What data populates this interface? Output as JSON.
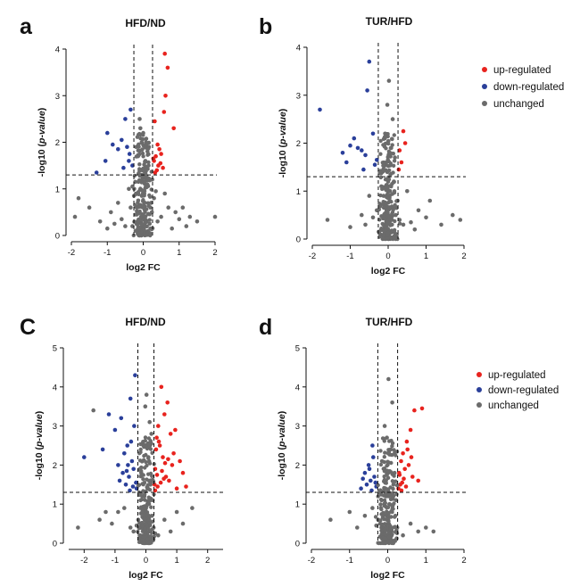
{
  "chart_data": [
    {
      "panel_letter": "a",
      "type": "scatter",
      "title": "HFD/ND",
      "xlabel": "log2 FC",
      "ylabel_prefix": "-log10 (",
      "ylabel_italic": "p-value",
      "ylabel_suffix": ")",
      "xlim": [
        -2,
        2
      ],
      "ylim": [
        0,
        4
      ],
      "xticks": [
        -2,
        -1,
        0,
        1,
        2
      ],
      "yticks": [
        0,
        1,
        2,
        3,
        4
      ],
      "fc_threshold": [
        -0.26,
        0.26
      ],
      "p_threshold": 1.3,
      "grid": false,
      "legend": false,
      "series": [
        {
          "color": "#e8231e",
          "x": [
            0.6,
            0.68,
            0.62,
            0.58,
            0.85,
            0.32,
            0.4,
            0.45,
            0.5,
            0.35,
            0.3,
            0.42,
            0.55,
            0.38,
            0.48,
            0.28,
            0.33
          ],
          "y": [
            3.9,
            3.6,
            3.0,
            2.65,
            2.3,
            2.45,
            1.95,
            1.85,
            1.75,
            1.7,
            1.6,
            1.5,
            1.45,
            1.4,
            1.55,
            1.65,
            1.35
          ]
        },
        {
          "color": "#2a3f9a",
          "x": [
            -0.35,
            -0.5,
            -1.0,
            -1.05,
            -1.3,
            -0.85,
            -0.6,
            -0.45,
            -0.4,
            -0.55,
            -0.3,
            -0.38,
            -0.7
          ],
          "y": [
            2.7,
            2.5,
            2.2,
            1.6,
            1.35,
            1.95,
            2.05,
            1.9,
            1.6,
            1.45,
            1.5,
            1.75,
            1.85
          ]
        },
        {
          "color": "#6b6b6b",
          "x": [
            -1.8,
            -1.9,
            -1.5,
            -1.2,
            -0.9,
            -0.3,
            -0.1,
            0.1,
            0.2,
            -0.2,
            0.05,
            1.1,
            1.3,
            1.5,
            2.0,
            1.2,
            0.9,
            -0.7,
            -0.4,
            0.6,
            -0.05,
            0.15,
            -0.15,
            0.25,
            -0.25,
            0.08,
            -0.08,
            0.3,
            -0.35,
            0.4,
            0.5,
            -0.5,
            -0.6,
            0.7,
            -0.1,
            0.12,
            0.0,
            0.18,
            -0.18,
            0.22,
            -0.22,
            0.04,
            -0.04,
            0.8,
            -0.8,
            1.0,
            -1.0,
            0.35,
            -0.3,
            0.1,
            -0.12,
            0.2,
            0.06,
            -0.06,
            0.16,
            -0.14,
            0.24,
            0.0,
            0.03,
            -0.02
          ],
          "y": [
            0.8,
            0.4,
            0.6,
            0.3,
            0.5,
            0.2,
            0.1,
            0.3,
            0.6,
            0.9,
            1.1,
            0.6,
            0.4,
            0.3,
            0.4,
            0.2,
            0.5,
            0.7,
            1.0,
            0.9,
            1.3,
            1.5,
            1.7,
            1.2,
            1.0,
            2.0,
            2.3,
            0.8,
            0.6,
            0.3,
            0.4,
            0.2,
            0.35,
            0.6,
            2.5,
            1.8,
            0.05,
            0.25,
            0.45,
            0.7,
            1.15,
            0.55,
            0.85,
            0.15,
            0.25,
            0.35,
            0.15,
            0.95,
            1.05,
            1.25,
            0.65,
            0.15,
            1.6,
            0.4,
            1.9,
            0.75,
            0.5,
            2.2,
            0.9,
            1.4
          ]
        }
      ]
    },
    {
      "panel_letter": "b",
      "type": "scatter",
      "title": "TUR/HFD",
      "xlabel": "log2 FC",
      "ylabel_prefix": "-log10 (",
      "ylabel_italic": "p-value",
      "ylabel_suffix": ")",
      "xlim": [
        -2,
        2
      ],
      "ylim": [
        0,
        4
      ],
      "xticks": [
        -2,
        -1,
        0,
        1,
        2
      ],
      "yticks": [
        0,
        1,
        2,
        3,
        4
      ],
      "fc_threshold": [
        -0.26,
        0.26
      ],
      "p_threshold": 1.3,
      "grid": false,
      "legend": true,
      "series": [
        {
          "color": "#e8231e",
          "x": [
            0.4,
            0.3,
            0.35,
            0.28,
            0.45
          ],
          "y": [
            2.25,
            1.85,
            1.6,
            1.45,
            2.0
          ]
        },
        {
          "color": "#2a3f9a",
          "x": [
            -1.8,
            -0.5,
            -0.55,
            -0.9,
            -1.0,
            -0.8,
            -0.7,
            -0.6,
            -1.2,
            -1.1,
            -0.4,
            -0.35,
            -0.65,
            -0.3
          ],
          "y": [
            2.7,
            3.7,
            3.1,
            2.1,
            1.95,
            1.9,
            1.85,
            1.75,
            1.8,
            1.6,
            2.2,
            1.55,
            1.45,
            1.65
          ]
        },
        {
          "color": "#6b6b6b",
          "x": [
            -0.1,
            0.1,
            0.2,
            -0.2,
            0.05,
            0.0,
            0.15,
            -0.15,
            0.3,
            -0.3,
            0.6,
            1.0,
            1.4,
            1.7,
            1.9,
            1.1,
            0.8,
            -0.7,
            -0.5,
            -1.0,
            -1.6,
            -0.05,
            0.08,
            -0.08,
            0.25,
            -0.25,
            0.12,
            -0.12,
            0.18,
            -0.18,
            0.4,
            -0.4,
            0.02,
            -0.02,
            0.22,
            0.06,
            -0.06,
            0.5,
            -0.6,
            0.7
          ],
          "y": [
            0.1,
            0.3,
            0.5,
            0.7,
            1.0,
            0.2,
            1.2,
            1.4,
            0.4,
            0.6,
            0.35,
            0.45,
            0.3,
            0.5,
            0.4,
            0.8,
            0.6,
            0.5,
            0.9,
            0.25,
            0.4,
            1.6,
            1.9,
            2.2,
            0.8,
            0.15,
            2.5,
            0.9,
            1.7,
            1.1,
            0.3,
            0.45,
            3.3,
            2.8,
            0.65,
            1.35,
            0.55,
            1.0,
            0.3,
            0.2
          ]
        }
      ]
    },
    {
      "panel_letter": "C",
      "type": "scatter",
      "title": "HFD/ND",
      "xlabel": "log2 FC",
      "ylabel_prefix": "-log10 (",
      "ylabel_italic": "p-value",
      "ylabel_suffix": ")",
      "xlim": [
        -2.5,
        2.5
      ],
      "ylim": [
        0,
        5
      ],
      "xticks": [
        -2,
        -1,
        0,
        1,
        2
      ],
      "yticks": [
        0,
        1,
        2,
        3,
        4,
        5
      ],
      "fc_threshold": [
        -0.26,
        0.26
      ],
      "p_threshold": 1.3,
      "grid": false,
      "legend": false,
      "series": [
        {
          "color": "#e8231e",
          "x": [
            0.5,
            0.7,
            0.6,
            0.9,
            1.1,
            0.4,
            0.35,
            0.45,
            0.8,
            1.2,
            0.55,
            0.3,
            0.65,
            0.75,
            0.28,
            0.38,
            0.48,
            0.58,
            0.85,
            1.0,
            0.33,
            0.42,
            0.52,
            0.62,
            0.72,
            0.3,
            0.36,
            1.3,
            0.95
          ],
          "y": [
            4.0,
            3.6,
            3.3,
            2.3,
            2.1,
            3.0,
            2.7,
            2.5,
            2.8,
            1.8,
            2.2,
            1.9,
            1.7,
            1.6,
            1.5,
            1.45,
            1.55,
            1.65,
            2.0,
            1.4,
            2.4,
            2.6,
            1.85,
            2.05,
            2.15,
            1.35,
            1.75,
            1.45,
            2.9
          ]
        },
        {
          "color": "#2a3f9a",
          "x": [
            -0.35,
            -0.5,
            -0.8,
            -1.0,
            -1.2,
            -0.6,
            -0.7,
            -0.45,
            -0.4,
            -0.55,
            -0.65,
            -0.3,
            -0.9,
            -1.4,
            -2.0,
            -0.38,
            -0.48,
            -0.58,
            -0.75,
            -0.85,
            -0.32,
            -0.42,
            -0.52,
            -0.62
          ],
          "y": [
            4.3,
            3.7,
            3.2,
            2.9,
            3.3,
            2.5,
            2.3,
            2.1,
            1.9,
            1.7,
            1.5,
            1.4,
            2.0,
            2.4,
            2.2,
            3.0,
            2.6,
            2.0,
            1.8,
            1.6,
            1.55,
            1.45,
            1.35,
            1.85
          ]
        },
        {
          "color": "#6b6b6b",
          "x": [
            -2.2,
            -1.7,
            -1.5,
            -1.1,
            -0.9,
            -0.2,
            0.0,
            0.1,
            -0.1,
            0.2,
            0.05,
            -0.05,
            0.15,
            -0.15,
            0.25,
            -0.25,
            1.0,
            1.2,
            0.8,
            -0.7,
            -0.5,
            0.6,
            0.4,
            -0.4,
            0.08,
            -0.08,
            0.18,
            -0.18,
            0.12,
            -0.12,
            0.02,
            -0.02,
            0.22,
            -0.22,
            0.3,
            -0.3,
            1.5,
            -1.3
          ],
          "y": [
            0.4,
            3.4,
            0.6,
            0.5,
            0.8,
            0.2,
            0.1,
            0.3,
            0.5,
            0.7,
            1.0,
            1.2,
            1.5,
            1.8,
            0.4,
            0.6,
            0.8,
            0.5,
            0.3,
            0.9,
            0.4,
            0.6,
            0.2,
            0.3,
            2.2,
            2.5,
            2.8,
            0.9,
            3.1,
            0.15,
            3.8,
            3.5,
            1.1,
            1.3,
            0.25,
            0.45,
            0.9,
            0.8
          ]
        }
      ]
    },
    {
      "panel_letter": "d",
      "type": "scatter",
      "title": "TUR/HFD",
      "xlabel": "log2 FC",
      "ylabel_prefix": "-log10 (",
      "ylabel_italic": "p-value",
      "ylabel_suffix": ")",
      "xlim": [
        -2,
        2
      ],
      "ylim": [
        0,
        5
      ],
      "xticks": [
        -2,
        -1,
        0,
        1,
        2
      ],
      "yticks": [
        0,
        1,
        2,
        3,
        4,
        5
      ],
      "fc_threshold": [
        -0.26,
        0.26
      ],
      "p_threshold": 1.3,
      "grid": false,
      "legend": true,
      "series": [
        {
          "color": "#e8231e",
          "x": [
            0.7,
            0.9,
            0.6,
            0.5,
            0.4,
            0.35,
            0.55,
            0.45,
            0.3,
            0.65,
            0.8,
            0.38,
            0.48,
            0.28,
            0.33,
            0.42,
            0.52,
            0.62,
            0.36,
            0.31
          ],
          "y": [
            3.4,
            3.45,
            2.9,
            2.6,
            2.3,
            2.1,
            2.0,
            1.9,
            1.8,
            1.7,
            1.6,
            1.55,
            1.45,
            1.4,
            1.5,
            1.65,
            2.4,
            2.2,
            1.35,
            1.75
          ]
        },
        {
          "color": "#2a3f9a",
          "x": [
            -0.4,
            -0.5,
            -0.6,
            -0.35,
            -0.45,
            -0.55,
            -0.3,
            -0.7,
            -0.38,
            -0.48,
            -0.32,
            -0.42,
            -0.65
          ],
          "y": [
            2.5,
            2.0,
            1.8,
            1.7,
            1.6,
            1.5,
            1.45,
            1.4,
            2.2,
            1.9,
            1.55,
            1.35,
            1.65
          ]
        },
        {
          "color": "#6b6b6b",
          "x": [
            -1.0,
            -1.5,
            -0.8,
            -0.1,
            0.0,
            0.1,
            -0.2,
            0.2,
            0.05,
            -0.05,
            0.15,
            -0.15,
            0.25,
            -0.25,
            0.6,
            1.0,
            0.8,
            -0.6,
            -0.4,
            0.4,
            0.08,
            -0.08,
            0.18,
            -0.18,
            0.12,
            -0.12,
            0.02,
            -0.02,
            0.22,
            -0.22,
            1.2,
            -0.3
          ],
          "y": [
            0.8,
            0.6,
            0.4,
            0.2,
            0.1,
            0.3,
            0.5,
            0.7,
            1.0,
            1.2,
            1.5,
            2.1,
            0.4,
            0.6,
            0.5,
            0.4,
            0.3,
            0.7,
            0.9,
            0.2,
            2.4,
            3.0,
            1.8,
            0.9,
            3.6,
            0.15,
            4.2,
            2.7,
            1.1,
            1.3,
            0.3,
            0.45
          ]
        }
      ]
    }
  ],
  "legend": {
    "items": [
      {
        "label": "up-regulated",
        "color": "#e8231e"
      },
      {
        "label": "down-regulated",
        "color": "#2a3f9a"
      },
      {
        "label": "unchanged",
        "color": "#6b6b6b"
      }
    ]
  }
}
